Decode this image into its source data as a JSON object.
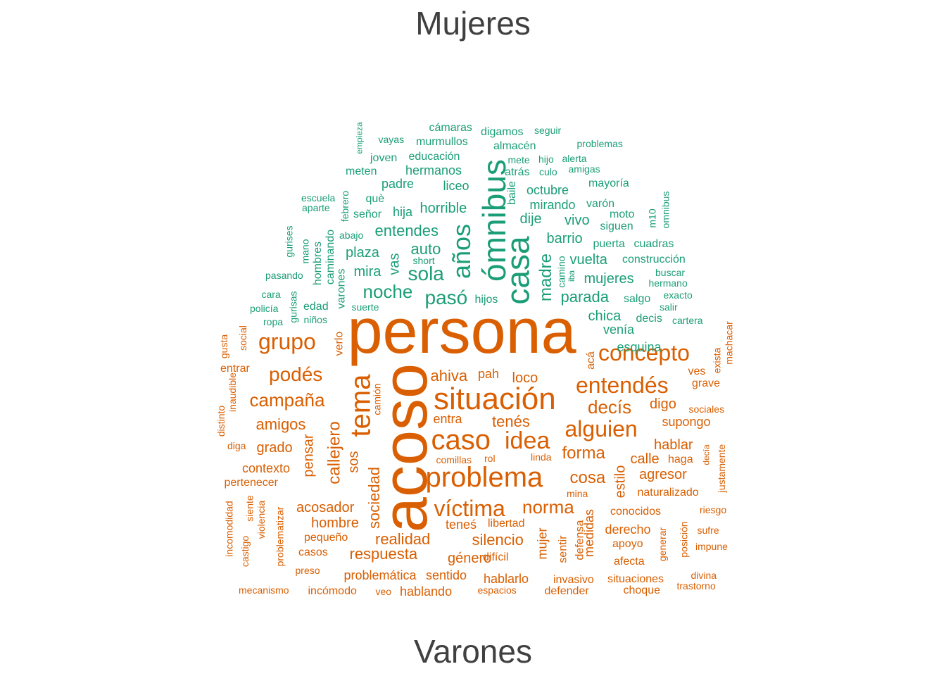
{
  "title_top": "Mujeres",
  "title_bottom": "Varones",
  "colors": {
    "mujeres": "#1b9e77",
    "varones": "#d95f02",
    "title": "#404040"
  },
  "words": [
    {
      "t": "persona",
      "g": "v"
    },
    {
      "t": "acoso",
      "g": "v"
    },
    {
      "t": "ómnibus",
      "g": "m"
    },
    {
      "t": "casa",
      "g": "m"
    },
    {
      "t": "años",
      "g": "m"
    },
    {
      "t": "situación",
      "g": "v"
    },
    {
      "t": "tema",
      "g": "v"
    },
    {
      "t": "problema",
      "g": "v"
    },
    {
      "t": "caso",
      "g": "v"
    },
    {
      "t": "idea",
      "g": "v"
    },
    {
      "t": "entendés",
      "g": "v"
    },
    {
      "t": "concepto",
      "g": "v"
    },
    {
      "t": "alguien",
      "g": "v"
    },
    {
      "t": "víctima",
      "g": "v"
    },
    {
      "t": "grupo",
      "g": "v"
    },
    {
      "t": "podés",
      "g": "v"
    },
    {
      "t": "sola",
      "g": "m"
    },
    {
      "t": "pasó",
      "g": "m"
    },
    {
      "t": "noche",
      "g": "m"
    },
    {
      "t": "madre",
      "g": "m"
    },
    {
      "t": "campaña",
      "g": "v"
    },
    {
      "t": "callejero",
      "g": "v"
    },
    {
      "t": "sociedad",
      "g": "v"
    },
    {
      "t": "decís",
      "g": "v"
    },
    {
      "t": "norma",
      "g": "v"
    },
    {
      "t": "cosa",
      "g": "v"
    },
    {
      "t": "forma",
      "g": "v"
    },
    {
      "t": "realidad",
      "g": "v"
    },
    {
      "t": "silencio",
      "g": "v"
    },
    {
      "t": "respuesta",
      "g": "v"
    },
    {
      "t": "acosador",
      "g": "v"
    },
    {
      "t": "amigos",
      "g": "v"
    },
    {
      "t": "pensar",
      "g": "v"
    },
    {
      "t": "ahiva",
      "g": "v"
    },
    {
      "t": "tenés",
      "g": "v"
    },
    {
      "t": "mujer",
      "g": "v"
    },
    {
      "t": "hombre",
      "g": "v"
    },
    {
      "t": "género",
      "g": "v"
    },
    {
      "t": "grado",
      "g": "v"
    },
    {
      "t": "contexto",
      "g": "v"
    },
    {
      "t": "agresor",
      "g": "v"
    },
    {
      "t": "calle",
      "g": "v"
    },
    {
      "t": "estilo",
      "g": "v"
    },
    {
      "t": "hablar",
      "g": "v"
    },
    {
      "t": "digo",
      "g": "v"
    },
    {
      "t": "supongo",
      "g": "v"
    },
    {
      "t": "loco",
      "g": "v"
    },
    {
      "t": "pah",
      "g": "v"
    },
    {
      "t": "entra",
      "g": "v"
    },
    {
      "t": "sos",
      "g": "v"
    },
    {
      "t": "teneś",
      "g": "v"
    },
    {
      "t": "libertad",
      "g": "v"
    },
    {
      "t": "problemática",
      "g": "v"
    },
    {
      "t": "sentido",
      "g": "v"
    },
    {
      "t": "hablarlo",
      "g": "v"
    },
    {
      "t": "hablando",
      "g": "v"
    },
    {
      "t": "medidas",
      "g": "v"
    },
    {
      "t": "derecho",
      "g": "v"
    },
    {
      "t": "conocidos",
      "g": "v"
    },
    {
      "t": "naturalizado",
      "g": "v"
    },
    {
      "t": "pequeño",
      "g": "v"
    },
    {
      "t": "casos",
      "g": "v"
    },
    {
      "t": "difícil",
      "g": "v"
    },
    {
      "t": "sentir",
      "g": "v"
    },
    {
      "t": "defensa",
      "g": "v"
    },
    {
      "t": "apoyo",
      "g": "v"
    },
    {
      "t": "afecta",
      "g": "v"
    },
    {
      "t": "situaciones",
      "g": "v"
    },
    {
      "t": "choque",
      "g": "v"
    },
    {
      "t": "invasivo",
      "g": "v"
    },
    {
      "t": "defender",
      "g": "v"
    },
    {
      "t": "espacios",
      "g": "v"
    },
    {
      "t": "veo",
      "g": "v"
    },
    {
      "t": "incómodo",
      "g": "v"
    },
    {
      "t": "mecanismo",
      "g": "v"
    },
    {
      "t": "preso",
      "g": "v"
    },
    {
      "t": "problematizar",
      "g": "v"
    },
    {
      "t": "violencia",
      "g": "v"
    },
    {
      "t": "siente",
      "g": "v"
    },
    {
      "t": "castigo",
      "g": "v"
    },
    {
      "t": "incomodidad",
      "g": "v"
    },
    {
      "t": "pertenecer",
      "g": "v"
    },
    {
      "t": "diga",
      "g": "v"
    },
    {
      "t": "distinto",
      "g": "v"
    },
    {
      "t": "inaudible",
      "g": "v"
    },
    {
      "t": "entrar",
      "g": "v"
    },
    {
      "t": "gusta",
      "g": "v"
    },
    {
      "t": "social",
      "g": "v"
    },
    {
      "t": "verlo",
      "g": "v"
    },
    {
      "t": "acá",
      "g": "v"
    },
    {
      "t": "ves",
      "g": "v"
    },
    {
      "t": "grave",
      "g": "v"
    },
    {
      "t": "sociales",
      "g": "v"
    },
    {
      "t": "exista",
      "g": "v"
    },
    {
      "t": "machacar",
      "g": "v"
    },
    {
      "t": "haga",
      "g": "v"
    },
    {
      "t": "decía",
      "g": "v"
    },
    {
      "t": "justamente",
      "g": "v"
    },
    {
      "t": "riesgo",
      "g": "v"
    },
    {
      "t": "sufre",
      "g": "v"
    },
    {
      "t": "impune",
      "g": "v"
    },
    {
      "t": "posición",
      "g": "v"
    },
    {
      "t": "generar",
      "g": "v"
    },
    {
      "t": "divina",
      "g": "v"
    },
    {
      "t": "trastorno",
      "g": "v"
    },
    {
      "t": "mina",
      "g": "v"
    },
    {
      "t": "linda",
      "g": "v"
    },
    {
      "t": "comillas",
      "g": "v"
    },
    {
      "t": "rol",
      "g": "v"
    },
    {
      "t": "camión",
      "g": "v"
    },
    {
      "t": "vuelta",
      "g": "m"
    },
    {
      "t": "parada",
      "g": "m"
    },
    {
      "t": "mujeres",
      "g": "m"
    },
    {
      "t": "chica",
      "g": "m"
    },
    {
      "t": "venía",
      "g": "m"
    },
    {
      "t": "esquina",
      "g": "m"
    },
    {
      "t": "decis",
      "g": "m"
    },
    {
      "t": "cartera",
      "g": "m"
    },
    {
      "t": "salir",
      "g": "m"
    },
    {
      "t": "exacto",
      "g": "m"
    },
    {
      "t": "hermano",
      "g": "m"
    },
    {
      "t": "buscar",
      "g": "m"
    },
    {
      "t": "construcción",
      "g": "m"
    },
    {
      "t": "cuadras",
      "g": "m"
    },
    {
      "t": "puerta",
      "g": "m"
    },
    {
      "t": "barrio",
      "g": "m"
    },
    {
      "t": "salgo",
      "g": "m"
    },
    {
      "t": "camino",
      "g": "m"
    },
    {
      "t": "iba",
      "g": "m"
    },
    {
      "t": "hijos",
      "g": "m"
    },
    {
      "t": "vivo",
      "g": "m"
    },
    {
      "t": "siguen",
      "g": "m"
    },
    {
      "t": "moto",
      "g": "m"
    },
    {
      "t": "m10",
      "g": "m"
    },
    {
      "t": "omnibus",
      "g": "m"
    },
    {
      "t": "varón",
      "g": "m"
    },
    {
      "t": "mirando",
      "g": "m"
    },
    {
      "t": "dije",
      "g": "m"
    },
    {
      "t": "octubre",
      "g": "m"
    },
    {
      "t": "mayoría",
      "g": "m"
    },
    {
      "t": "baile",
      "g": "m"
    },
    {
      "t": "atrás",
      "g": "m"
    },
    {
      "t": "culo",
      "g": "m"
    },
    {
      "t": "amigas",
      "g": "m"
    },
    {
      "t": "mete",
      "g": "m"
    },
    {
      "t": "hijo",
      "g": "m"
    },
    {
      "t": "alerta",
      "g": "m"
    },
    {
      "t": "almacén",
      "g": "m"
    },
    {
      "t": "problemas",
      "g": "m"
    },
    {
      "t": "digamos",
      "g": "m"
    },
    {
      "t": "seguir",
      "g": "m"
    },
    {
      "t": "cámaras",
      "g": "m"
    },
    {
      "t": "murmullos",
      "g": "m"
    },
    {
      "t": "vayas",
      "g": "m"
    },
    {
      "t": "educación",
      "g": "m"
    },
    {
      "t": "joven",
      "g": "m"
    },
    {
      "t": "hermanos",
      "g": "m"
    },
    {
      "t": "meten",
      "g": "m"
    },
    {
      "t": "empieza",
      "g": "m"
    },
    {
      "t": "padre",
      "g": "m"
    },
    {
      "t": "liceo",
      "g": "m"
    },
    {
      "t": "què",
      "g": "m"
    },
    {
      "t": "hija",
      "g": "m"
    },
    {
      "t": "horrible",
      "g": "m"
    },
    {
      "t": "señor",
      "g": "m"
    },
    {
      "t": "febrero",
      "g": "m"
    },
    {
      "t": "escuela",
      "g": "m"
    },
    {
      "t": "aparte",
      "g": "m"
    },
    {
      "t": "abajo",
      "g": "m"
    },
    {
      "t": "entendes",
      "g": "m"
    },
    {
      "t": "auto",
      "g": "m"
    },
    {
      "t": "plaza",
      "g": "m"
    },
    {
      "t": "short",
      "g": "m"
    },
    {
      "t": "vas",
      "g": "m"
    },
    {
      "t": "mira",
      "g": "m"
    },
    {
      "t": "caminando",
      "g": "m"
    },
    {
      "t": "hombres",
      "g": "m"
    },
    {
      "t": "mano",
      "g": "m"
    },
    {
      "t": "gurises",
      "g": "m"
    },
    {
      "t": "pasando",
      "g": "m"
    },
    {
      "t": "cara",
      "g": "m"
    },
    {
      "t": "policía",
      "g": "m"
    },
    {
      "t": "ropa",
      "g": "m"
    },
    {
      "t": "gurisas",
      "g": "m"
    },
    {
      "t": "edad",
      "g": "m"
    },
    {
      "t": "niños",
      "g": "m"
    },
    {
      "t": "varones",
      "g": "m"
    },
    {
      "t": "suerte",
      "g": "m"
    }
  ]
}
